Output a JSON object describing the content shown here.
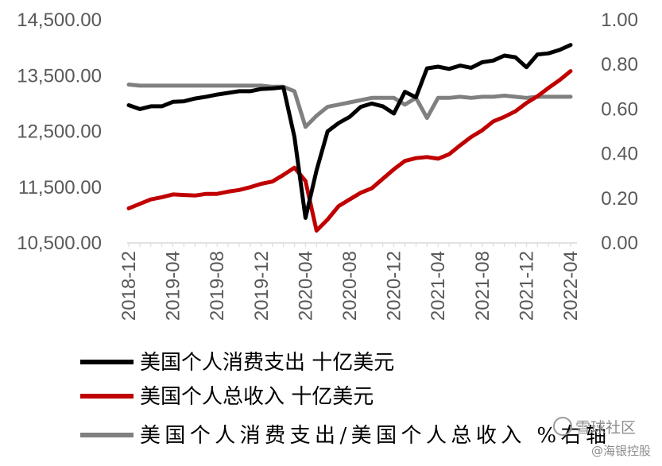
{
  "chart_data": {
    "type": "line",
    "x": [
      "2018-12",
      "2019-01",
      "2019-02",
      "2019-03",
      "2019-04",
      "2019-05",
      "2019-06",
      "2019-07",
      "2019-08",
      "2019-09",
      "2019-10",
      "2019-11",
      "2019-12",
      "2020-01",
      "2020-02",
      "2020-03",
      "2020-04",
      "2020-05",
      "2020-06",
      "2020-07",
      "2020-08",
      "2020-09",
      "2020-10",
      "2020-11",
      "2020-12",
      "2021-01",
      "2021-02",
      "2021-03",
      "2021-04",
      "2021-05",
      "2021-06",
      "2021-07",
      "2021-08",
      "2021-09",
      "2021-10",
      "2021-11",
      "2021-12",
      "2022-01",
      "2022-02",
      "2022-03",
      "2022-04"
    ],
    "x_tick_labels": [
      "2018-12",
      "2019-04",
      "2019-08",
      "2019-12",
      "2020-04",
      "2020-08",
      "2020-12",
      "2021-04",
      "2021-08",
      "2021-12",
      "2022-04"
    ],
    "y_left": {
      "range": [
        10500,
        14500
      ],
      "ticks": [
        "14,500.00",
        "13,500.00",
        "12,500.00",
        "11,500.00",
        "10,500.00"
      ],
      "tick_values": [
        14500,
        13500,
        12500,
        11500,
        10500
      ]
    },
    "y_right": {
      "range": [
        0,
        1.0
      ],
      "ticks": [
        "1.00",
        "0.80",
        "0.60",
        "0.40",
        "0.20",
        "0.00"
      ],
      "tick_values": [
        1.0,
        0.8,
        0.6,
        0.4,
        0.2,
        0.0
      ]
    },
    "series": [
      {
        "name": "美国个人消费支出 十亿美元",
        "axis": "left",
        "color": "#000000",
        "values": [
          12970,
          12900,
          12950,
          12950,
          13030,
          13040,
          13090,
          13120,
          13160,
          13190,
          13220,
          13220,
          13260,
          13270,
          13290,
          12400,
          10950,
          11800,
          12500,
          12650,
          12760,
          12940,
          13000,
          12950,
          12820,
          13210,
          13110,
          13630,
          13660,
          13620,
          13680,
          13640,
          13740,
          13770,
          13860,
          13830,
          13650,
          13880,
          13900,
          13960,
          14050
        ]
      },
      {
        "name": "美国个人总收入 十亿美元",
        "axis": "left",
        "color": "#c00000",
        "values": [
          11120,
          11200,
          11280,
          11320,
          11370,
          11360,
          11350,
          11380,
          11380,
          11420,
          11450,
          11500,
          11560,
          11600,
          11720,
          11850,
          11610,
          10720,
          10920,
          11160,
          11280,
          11400,
          11480,
          11650,
          11820,
          11970,
          12020,
          12040,
          12010,
          12090,
          12250,
          12400,
          12520,
          12680,
          12760,
          12860,
          13010,
          13130,
          13280,
          13420,
          13580
        ]
      },
      {
        "name": "美国个人消费支出/美国个人总收入 %右轴",
        "axis": "right",
        "color": "#808080",
        "values": [
          0.71,
          0.705,
          0.705,
          0.705,
          0.705,
          0.705,
          0.705,
          0.705,
          0.705,
          0.705,
          0.705,
          0.705,
          0.705,
          0.7,
          0.7,
          0.68,
          0.52,
          0.57,
          0.61,
          0.62,
          0.63,
          0.64,
          0.65,
          0.65,
          0.65,
          0.62,
          0.65,
          0.56,
          0.65,
          0.65,
          0.655,
          0.65,
          0.655,
          0.655,
          0.66,
          0.655,
          0.65,
          0.655,
          0.655,
          0.655,
          0.655
        ]
      }
    ],
    "legend_position": "bottom",
    "grid": false
  },
  "watermark": {
    "line1": "雪球社区",
    "line2": "@海银控股"
  },
  "icons": {
    "watermark_logo": "snowball-logo-icon"
  }
}
